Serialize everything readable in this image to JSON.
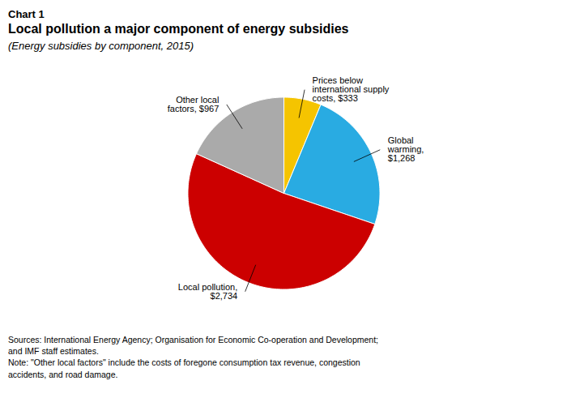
{
  "chart_data": {
    "type": "pie",
    "kicker": "Chart 1",
    "title": "Local pollution a major component of energy subsidies",
    "subtitle": "(Energy subsidies by component, 2015)",
    "categories": [
      "Prices below\ninternational supply\ncosts, $333",
      "Global\nwarming,\n$1,268",
      "Local pollution,\n$2,734",
      "Other local\nfactors, $967"
    ],
    "values": [
      333,
      1268,
      2734,
      967
    ],
    "colors": [
      "#F5C400",
      "#29ABE2",
      "#CC0000",
      "#AAAAAA"
    ],
    "caption": "Sources: International Energy Agency; Organisation for Economic Co-operation and Development;\nand IMF staff estimates.\nNote: \"Other local factors\" include the costs of foregone consumption tax revenue, congestion\naccidents, and road damage."
  }
}
